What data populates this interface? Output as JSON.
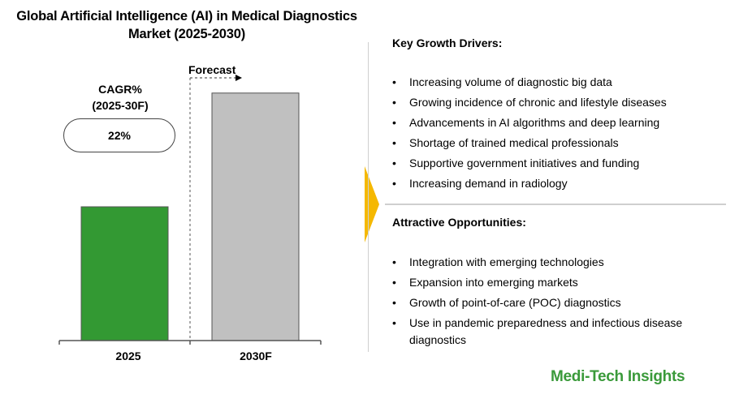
{
  "chart_data": {
    "type": "bar",
    "title": [
      "Global Artificial Intelligence (AI) in Medical Diagnostics",
      "Market (2025-2030)"
    ],
    "categories": [
      "2025",
      "2030F"
    ],
    "values": [
      1.0,
      1.85
    ],
    "value_units": "relative market size (bar heights read off figure; no axis values shown)",
    "xlabel": "",
    "ylabel": "",
    "ylim": [
      0,
      2.0
    ],
    "forecast_label": "Forecast",
    "cagr": {
      "label_line1": "CAGR%",
      "label_line2": "(2025-30F)",
      "value": "22%"
    },
    "colors": {
      "2025": "#339933",
      "2030F": "#c0c0c0"
    }
  },
  "drivers": {
    "heading": "Key Growth Drivers:",
    "items": [
      "Increasing volume of diagnostic big data",
      "Growing incidence of chronic and lifestyle diseases",
      "Advancements in AI algorithms and deep learning",
      "Shortage of trained medical professionals",
      "Supportive government initiatives and funding",
      "Increasing demand in radiology"
    ]
  },
  "opportunities": {
    "heading": "Attractive Opportunities:",
    "items": [
      "Integration with emerging technologies",
      "Expansion into emerging markets",
      "Growth of point-of-care (POC) diagnostics",
      "Use in pandemic preparedness and infectious disease diagnostics"
    ]
  },
  "brand": {
    "name": "Medi-Tech Insights",
    "color": "#3a9a3a"
  },
  "accent_color": "#f5b800"
}
